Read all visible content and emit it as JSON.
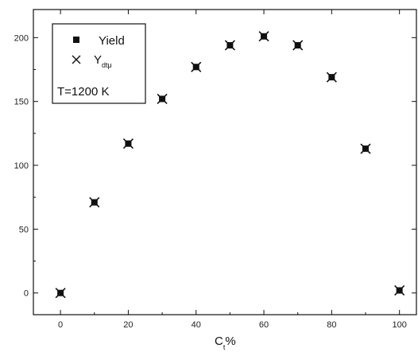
{
  "chart_data": {
    "type": "scatter",
    "title": "",
    "xlabel": "C",
    "xlabel_sub": "t",
    "xlabel_suffix": "%",
    "ylabel": "",
    "xlim": [
      -8,
      105
    ],
    "ylim": [
      -17,
      222
    ],
    "xticks": [
      0,
      20,
      40,
      60,
      80,
      100
    ],
    "yticks": [
      0,
      50,
      100,
      150,
      200
    ],
    "grid": false,
    "legend_position": "top-left",
    "legend_note": "T=1200 K",
    "series": [
      {
        "name": "Yield",
        "marker": "square",
        "x": [
          0,
          10,
          20,
          30,
          40,
          50,
          60,
          70,
          80,
          90,
          100
        ],
        "y": [
          0,
          71,
          117,
          152,
          177,
          194,
          201,
          194,
          169,
          113,
          2
        ]
      },
      {
        "name": "Y",
        "name_sub": "dtμ",
        "marker": "cross",
        "x": [
          0,
          10,
          20,
          30,
          40,
          50,
          60,
          70,
          80,
          90,
          100
        ],
        "y": [
          0,
          71,
          117,
          152,
          177,
          194,
          201,
          194,
          169,
          113,
          2
        ]
      }
    ]
  }
}
